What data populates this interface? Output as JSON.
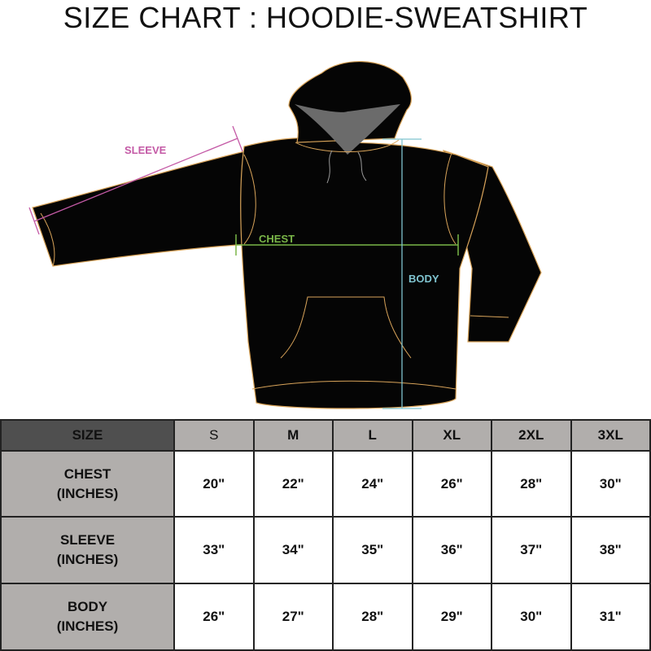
{
  "title": "SIZE CHART : HOODIE-SWEATSHIRT",
  "measure_labels": {
    "sleeve": "SLEEVE",
    "chest": "CHEST",
    "body": "BODY"
  },
  "colors": {
    "sleeve": "#c45aa6",
    "chest": "#7ab648",
    "body": "#7fc3cf",
    "garment": "#050505",
    "seams": "#d9a45a",
    "hood_lining": "#6b6b6b"
  },
  "table": {
    "corner": "SIZE",
    "sizes": [
      "S",
      "M",
      "L",
      "XL",
      "2XL",
      "3XL"
    ],
    "rows": [
      {
        "label": "CHEST",
        "unit": "(INCHES)",
        "values": [
          "20\"",
          "22\"",
          "24\"",
          "26\"",
          "28\"",
          "30\""
        ]
      },
      {
        "label": "SLEEVE",
        "unit": "(INCHES)",
        "values": [
          "33\"",
          "34\"",
          "35\"",
          "36\"",
          "37\"",
          "38\""
        ]
      },
      {
        "label": "BODY",
        "unit": "(INCHES)",
        "values": [
          "26\"",
          "27\"",
          "28\"",
          "29\"",
          "30\"",
          "31\""
        ]
      }
    ]
  }
}
